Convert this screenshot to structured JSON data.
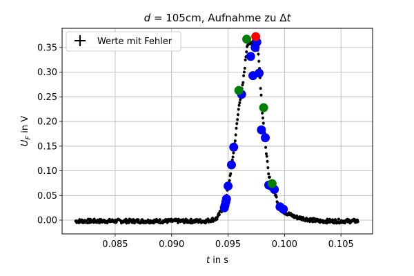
{
  "chart_data": {
    "type": "scatter",
    "title": {
      "prefix_italic": "d",
      "middle": " = 105cm, Aufnahme zu Δ",
      "suffix_italic": "t"
    },
    "xlabel": {
      "italic": "t",
      "rest": " in s"
    },
    "ylabel": {
      "main": "U",
      "sub": "F",
      "rest": " in V"
    },
    "xlim": [
      0.0803,
      0.1078
    ],
    "ylim": [
      -0.028,
      0.389
    ],
    "xticks": [
      0.085,
      0.09,
      0.095,
      0.1,
      0.105
    ],
    "xtick_labels": [
      "0.085",
      "0.090",
      "0.095",
      "0.100",
      "0.105"
    ],
    "yticks": [
      0.0,
      0.05,
      0.1,
      0.15,
      0.2,
      0.25,
      0.3,
      0.35
    ],
    "ytick_labels": [
      "0.00",
      "0.05",
      "0.10",
      "0.15",
      "0.20",
      "0.25",
      "0.30",
      "0.35"
    ],
    "grid": true,
    "legend": {
      "position": "top-left",
      "entries": [
        "Werte mit Fehler"
      ]
    },
    "colors": {
      "data": "#000000",
      "blue": "#0000ff",
      "green": "#008000",
      "red": "#ff0000",
      "grid": "#b0b0b0"
    },
    "data_range": {
      "x_start": 0.0815,
      "x_end": 0.1065,
      "n_points": 500
    },
    "pulse_profile": [
      [
        0.093,
        0.0
      ],
      [
        0.094,
        0.005
      ],
      [
        0.0945,
        0.025
      ],
      [
        0.095,
        0.065
      ],
      [
        0.0953,
        0.11
      ],
      [
        0.0956,
        0.16
      ],
      [
        0.096,
        0.24
      ],
      [
        0.0963,
        0.275
      ],
      [
        0.0967,
        0.36
      ],
      [
        0.097,
        0.36
      ],
      [
        0.0974,
        0.37
      ],
      [
        0.0977,
        0.34
      ],
      [
        0.098,
        0.23
      ],
      [
        0.0983,
        0.16
      ],
      [
        0.0986,
        0.09
      ],
      [
        0.099,
        0.07
      ],
      [
        0.0995,
        0.03
      ],
      [
        0.1,
        0.018
      ],
      [
        0.101,
        0.008
      ],
      [
        0.103,
        0.0
      ]
    ],
    "highlights": [
      {
        "color": "blue",
        "x": 0.09467,
        "y": 0.025
      },
      {
        "color": "blue",
        "x": 0.09473,
        "y": 0.03
      },
      {
        "color": "blue",
        "x": 0.0948,
        "y": 0.037
      },
      {
        "color": "blue",
        "x": 0.09486,
        "y": 0.043
      },
      {
        "color": "blue",
        "x": 0.095,
        "y": 0.069
      },
      {
        "color": "blue",
        "x": 0.0953,
        "y": 0.112
      },
      {
        "color": "blue",
        "x": 0.0955,
        "y": 0.148
      },
      {
        "color": "blue",
        "x": 0.0962,
        "y": 0.255
      },
      {
        "color": "blue",
        "x": 0.097,
        "y": 0.332
      },
      {
        "color": "blue",
        "x": 0.0972,
        "y": 0.293
      },
      {
        "color": "blue",
        "x": 0.0974,
        "y": 0.35
      },
      {
        "color": "blue",
        "x": 0.09755,
        "y": 0.361
      },
      {
        "color": "blue",
        "x": 0.09775,
        "y": 0.298
      },
      {
        "color": "blue",
        "x": 0.09795,
        "y": 0.183
      },
      {
        "color": "blue",
        "x": 0.0983,
        "y": 0.167
      },
      {
        "color": "blue",
        "x": 0.0986,
        "y": 0.071
      },
      {
        "color": "blue",
        "x": 0.0989,
        "y": 0.068
      },
      {
        "color": "blue",
        "x": 0.0991,
        "y": 0.062
      },
      {
        "color": "blue",
        "x": 0.0996,
        "y": 0.027
      },
      {
        "color": "blue",
        "x": 0.0999,
        "y": 0.022
      },
      {
        "color": "green",
        "x": 0.09595,
        "y": 0.263
      },
      {
        "color": "green",
        "x": 0.09665,
        "y": 0.367
      },
      {
        "color": "green",
        "x": 0.09815,
        "y": 0.228
      },
      {
        "color": "green",
        "x": 0.0989,
        "y": 0.074
      },
      {
        "color": "red",
        "x": 0.09745,
        "y": 0.372
      }
    ]
  }
}
